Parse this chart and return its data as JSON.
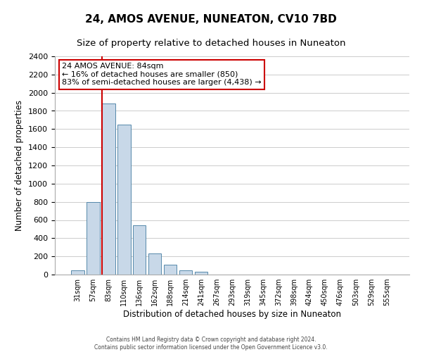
{
  "title": "24, AMOS AVENUE, NUNEATON, CV10 7BD",
  "subtitle": "Size of property relative to detached houses in Nuneaton",
  "xlabel": "Distribution of detached houses by size in Nuneaton",
  "ylabel": "Number of detached properties",
  "bar_labels": [
    "31sqm",
    "57sqm",
    "83sqm",
    "110sqm",
    "136sqm",
    "162sqm",
    "188sqm",
    "214sqm",
    "241sqm",
    "267sqm",
    "293sqm",
    "319sqm",
    "345sqm",
    "372sqm",
    "398sqm",
    "424sqm",
    "450sqm",
    "476sqm",
    "503sqm",
    "529sqm",
    "555sqm"
  ],
  "bar_values": [
    50,
    800,
    1880,
    1650,
    540,
    235,
    110,
    50,
    30,
    0,
    0,
    0,
    0,
    0,
    0,
    0,
    0,
    0,
    0,
    0,
    0
  ],
  "bar_color": "#c8d8e8",
  "bar_edge_color": "#5588aa",
  "highlight_line_index": 2,
  "highlight_line_color": "#cc0000",
  "ylim": [
    0,
    2400
  ],
  "yticks": [
    0,
    200,
    400,
    600,
    800,
    1000,
    1200,
    1400,
    1600,
    1800,
    2000,
    2200,
    2400
  ],
  "annotation_title": "24 AMOS AVENUE: 84sqm",
  "annotation_line1": "← 16% of detached houses are smaller (850)",
  "annotation_line2": "83% of semi-detached houses are larger (4,438) →",
  "footer_line1": "Contains HM Land Registry data © Crown copyright and database right 2024.",
  "footer_line2": "Contains public sector information licensed under the Open Government Licence v3.0.",
  "background_color": "#ffffff",
  "grid_color": "#cccccc",
  "title_fontsize": 11,
  "subtitle_fontsize": 9.5
}
